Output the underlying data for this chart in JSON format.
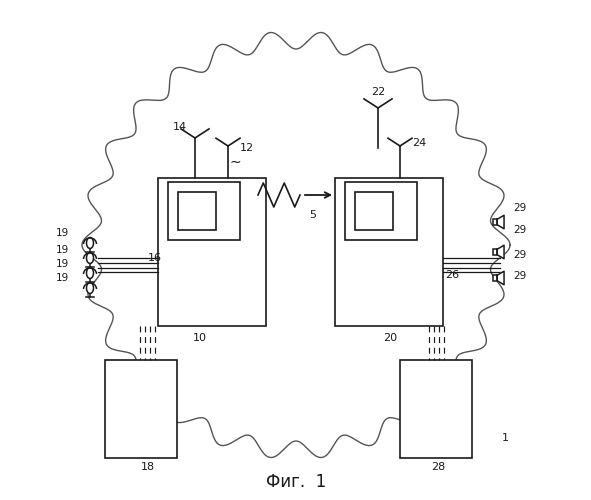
{
  "title": "Фиг.  1",
  "bg": "#ffffff",
  "lc": "#1a1a1a",
  "fig_w": 5.91,
  "fig_h": 5.0,
  "dpi": 100
}
